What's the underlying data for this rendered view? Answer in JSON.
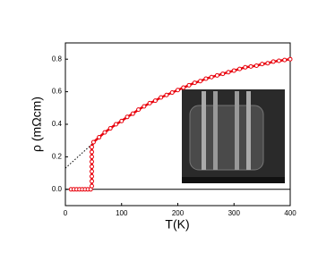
{
  "chart_data": {
    "type": "scatter",
    "x_label": "T(K)",
    "y_label": "ρ (mΩcm)",
    "xlim": [
      0,
      400
    ],
    "ylim": [
      -0.1,
      0.9
    ],
    "xticks": [
      0,
      100,
      200,
      300,
      400
    ],
    "yticks": [
      {
        "value": 0,
        "label": "0.0"
      },
      0.2,
      0.4,
      0.6,
      0.8
    ],
    "zero_line": 0,
    "series": [
      {
        "color": "#e8000b",
        "x": [
          10,
          15,
          20,
          25,
          30,
          35,
          40,
          45,
          47,
          47,
          47,
          47,
          47,
          47,
          47,
          47,
          47,
          50,
          60,
          70,
          80,
          90,
          100,
          110,
          120,
          130,
          140,
          150,
          160,
          170,
          180,
          190,
          200,
          210,
          220,
          230,
          240,
          250,
          260,
          270,
          280,
          290,
          300,
          310,
          320,
          330,
          340,
          350,
          360,
          370,
          380,
          390,
          400
        ],
        "values": [
          0,
          0,
          0,
          0,
          0,
          0,
          0,
          0,
          0.02,
          0.05,
          0.08,
          0.11,
          0.14,
          0.17,
          0.2,
          0.23,
          0.26,
          0.29,
          0.32,
          0.35,
          0.375,
          0.4,
          0.42,
          0.445,
          0.465,
          0.49,
          0.51,
          0.53,
          0.545,
          0.565,
          0.58,
          0.595,
          0.61,
          0.625,
          0.64,
          0.655,
          0.665,
          0.68,
          0.69,
          0.7,
          0.71,
          0.72,
          0.73,
          0.74,
          0.75,
          0.755,
          0.76,
          0.77,
          0.775,
          0.785,
          0.79,
          0.795,
          0.8
        ]
      }
    ],
    "guides": [
      {
        "x": [
          0,
          48
        ],
        "values": [
          0.13,
          0.28
        ]
      }
    ]
  }
}
